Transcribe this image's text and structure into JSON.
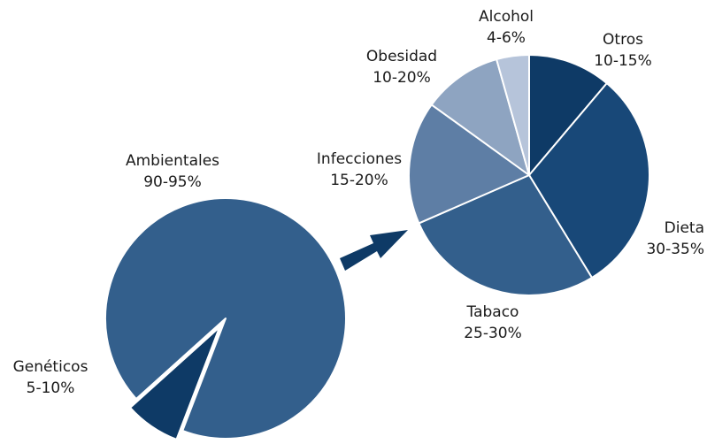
{
  "chart_data": [
    {
      "type": "pie",
      "title": "",
      "slices": [
        {
          "label": "Ambientales",
          "value_text": "90-95%",
          "value": 92.5,
          "color": "#335f8c"
        },
        {
          "label": "Genéticos",
          "value_text": "5-10%",
          "value": 7.5,
          "color": "#0e3a66"
        }
      ]
    },
    {
      "type": "pie",
      "title": "",
      "slices": [
        {
          "label": "Otros",
          "value_text": "10-15%",
          "value": 11.5,
          "color": "#0e3a66"
        },
        {
          "label": "Dieta",
          "value_text": "30-35%",
          "value": 31,
          "color": "#184878"
        },
        {
          "label": "Tabaco",
          "value_text": "25-30%",
          "value": 28,
          "color": "#335f8c"
        },
        {
          "label": "Infecciones",
          "value_text": "15-20%",
          "value": 17,
          "color": "#5e7ea5"
        },
        {
          "label": "Obesidad",
          "value_text": "10-20%",
          "value": 11,
          "color": "#8ea4c1"
        },
        {
          "label": "Alcohol",
          "value_text": "4-6%",
          "value": 4.5,
          "color": "#b6c4da"
        }
      ]
    }
  ],
  "colors": {
    "arrow": "#0e3a66",
    "slice_border": "#ffffff"
  }
}
